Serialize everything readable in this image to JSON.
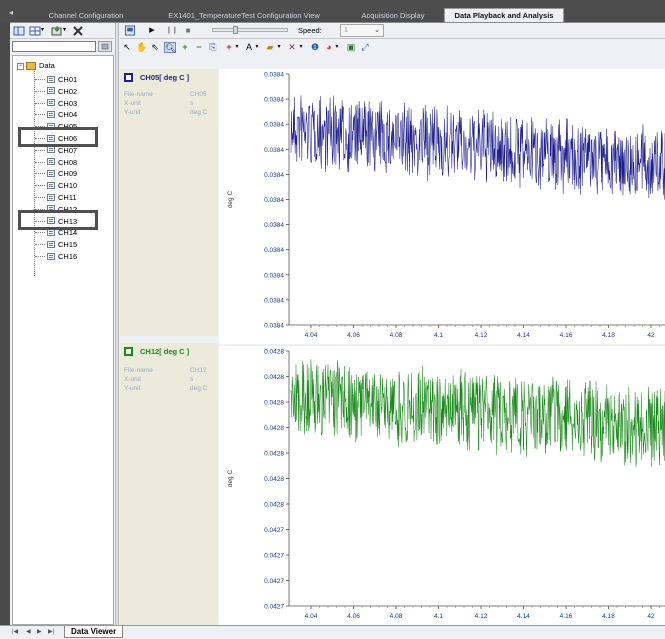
{
  "tabs": [
    {
      "label": "Channel Configuration",
      "active": false
    },
    {
      "label": "EX1401_TemperatureTest Configuration View",
      "active": false
    },
    {
      "label": "Acquisition Display",
      "active": false
    },
    {
      "label": "Data Playback and Analysis",
      "active": true
    }
  ],
  "tab_scroll_icon": "left-arrow-icon",
  "player": {
    "speed_label": "Speed:",
    "speed_value": "1",
    "slider_level": 0.3
  },
  "tree": {
    "root_label": "Data",
    "channels": [
      "CH01",
      "CH02",
      "CH03",
      "CH04",
      "CH05",
      "CH06",
      "CH07",
      "CH08",
      "CH09",
      "CH10",
      "CH11",
      "CH12",
      "CH13",
      "CH14",
      "CH15",
      "CH16"
    ],
    "highlighted": [
      "CH06",
      "CH13"
    ]
  },
  "charts": [
    {
      "title": "CH05[ deg C ]",
      "color": "#1f1f8f",
      "info": {
        "file_name_label": "File-name",
        "file_name_value": "CH05",
        "x_unit_label": "X-unit",
        "x_unit_value": "s",
        "y_unit_label": "Y-unit",
        "y_unit_value": "deg C"
      },
      "ylabel": "deg C",
      "y_ticks": [
        "0.0384",
        "0.0384",
        "0.0384",
        "0.0384",
        "0.0384",
        "0.0384",
        "0.0384",
        "0.0384",
        "0.0384",
        "0.0384",
        "0.0384"
      ],
      "x_ticks": [
        "4.04",
        "4.06",
        "4.08",
        "4.1",
        "4.12",
        "4.14",
        "4.16",
        "4.18",
        "42"
      ]
    },
    {
      "title": "CH12[ deg C ]",
      "color": "#1b8a1b",
      "info": {
        "file_name_label": "File-name",
        "file_name_value": "CH12",
        "x_unit_label": "X-unit",
        "x_unit_value": "s",
        "y_unit_label": "Y-unit",
        "y_unit_value": "deg C"
      },
      "ylabel": "deg C",
      "y_ticks": [
        "0.0428",
        "0.0428",
        "0.0428",
        "0.0428",
        "0.0428",
        "0.0428",
        "0.0428",
        "0.0427",
        "0.0427",
        "0.0427",
        "0.0427"
      ],
      "x_ticks": [
        "4.04",
        "4.06",
        "4.08",
        "4.1",
        "4.12",
        "4.14",
        "4.16",
        "4.18",
        "42"
      ]
    }
  ],
  "sheet_tab": "Data Viewer",
  "sheet_nav": [
    "|◀",
    "◀",
    "▶",
    "▶|"
  ]
}
